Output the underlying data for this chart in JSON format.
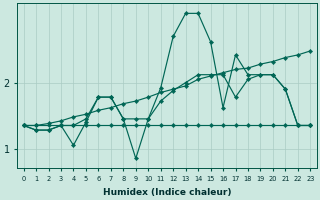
{
  "xlabel": "Humidex (Indice chaleur)",
  "ylabel": "",
  "bg_color": "#cce8e0",
  "grid_color": "#aaccc4",
  "line_color": "#006655",
  "xlim": [
    -0.5,
    23.5
  ],
  "ylim": [
    0.7,
    3.2
  ],
  "xticks": [
    0,
    1,
    2,
    3,
    4,
    5,
    6,
    7,
    8,
    9,
    10,
    11,
    12,
    13,
    14,
    15,
    16,
    17,
    18,
    19,
    20,
    21,
    22,
    23
  ],
  "yticks": [
    1,
    2
  ],
  "series": {
    "flat": [
      1.35,
      1.35,
      1.35,
      1.35,
      1.35,
      1.35,
      1.35,
      1.35,
      1.35,
      1.35,
      1.35,
      1.35,
      1.35,
      1.35,
      1.35,
      1.35,
      1.35,
      1.35,
      1.35,
      1.35,
      1.35,
      1.35,
      1.35,
      1.35
    ],
    "trend": [
      1.35,
      1.35,
      1.38,
      1.42,
      1.48,
      1.52,
      1.58,
      1.62,
      1.68,
      1.72,
      1.78,
      1.85,
      1.9,
      1.95,
      2.05,
      2.1,
      2.15,
      2.2,
      2.22,
      2.28,
      2.32,
      2.38,
      2.42,
      2.48
    ],
    "zigzag": [
      1.35,
      1.28,
      1.28,
      1.35,
      1.05,
      1.4,
      1.78,
      1.78,
      1.45,
      1.45,
      1.45,
      1.72,
      1.88,
      2.0,
      2.12,
      2.12,
      2.12,
      1.78,
      2.05,
      2.12,
      2.12,
      1.9,
      1.35,
      1.35
    ],
    "peak": [
      1.35,
      1.28,
      1.28,
      1.35,
      1.35,
      1.45,
      1.78,
      1.78,
      1.45,
      0.85,
      1.45,
      1.92,
      2.7,
      3.05,
      3.05,
      2.62,
      1.62,
      2.42,
      2.12,
      2.12,
      2.12,
      1.9,
      1.35,
      1.35
    ]
  }
}
